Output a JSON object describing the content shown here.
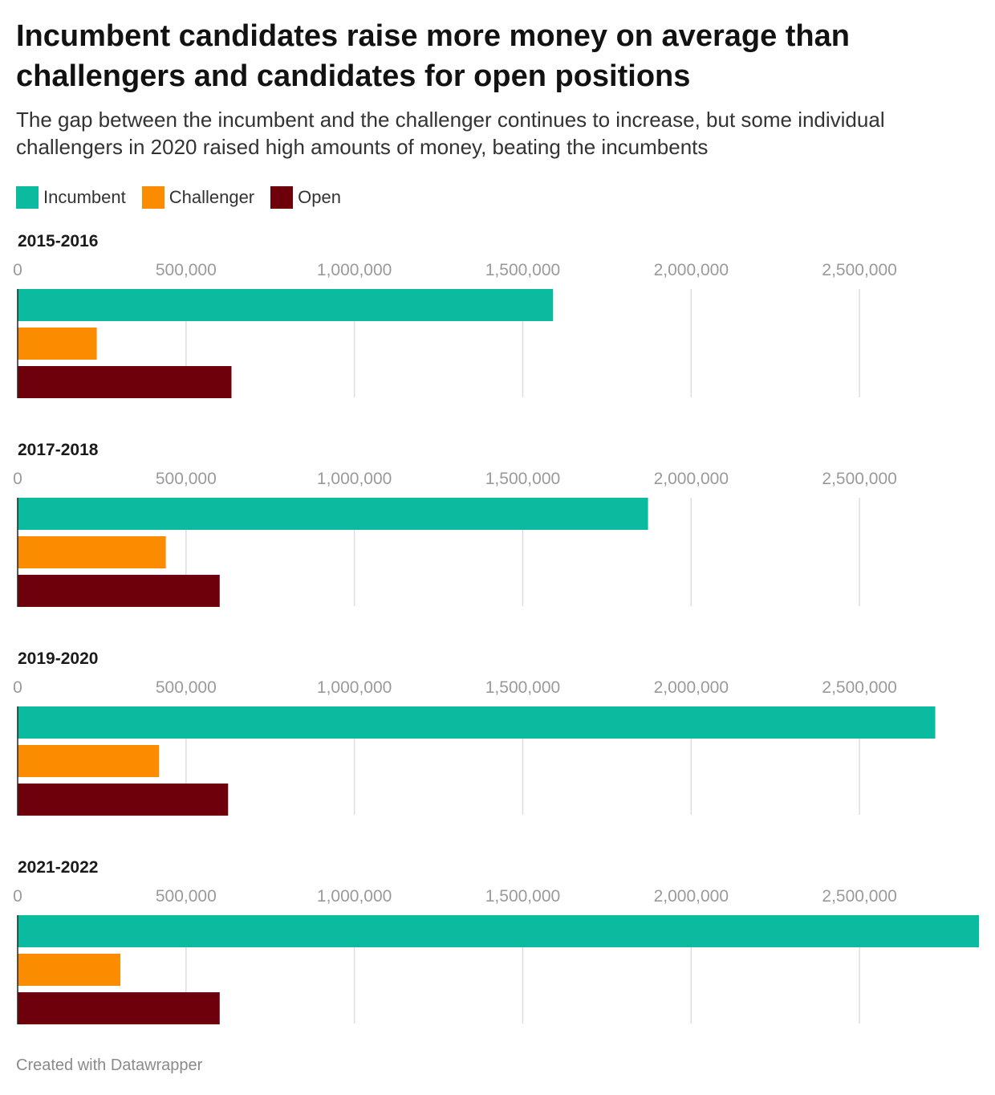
{
  "header": {
    "title": "Incumbent candidates raise more money on average than challengers and candidates for open positions",
    "subtitle": "The gap between the incumbent and the challenger continues to increase, but some individual challengers in 2020 raised high amounts of money, beating the incumbents"
  },
  "footer": {
    "credit": "Created with Datawrapper"
  },
  "colors": {
    "Incumbent": "#0bbba0",
    "Challenger": "#fb8c00",
    "Open": "#6d000b"
  },
  "chart_data": {
    "type": "bar",
    "orientation": "horizontal",
    "layout": "small-multiples",
    "xlim": [
      0,
      2850000
    ],
    "xticks": [
      0,
      500000,
      1000000,
      1500000,
      2000000,
      2500000
    ],
    "xtick_labels": [
      "0",
      "500,000",
      "1,000,000",
      "1,500,000",
      "2,000,000",
      "2,500,000"
    ],
    "grid": true,
    "legend": "top-left",
    "series_names": [
      "Incumbent",
      "Challenger",
      "Open"
    ],
    "panels": [
      {
        "title": "2015-2016",
        "values": [
          1590000,
          235000,
          635000
        ]
      },
      {
        "title": "2017-2018",
        "values": [
          1872000,
          440000,
          600000
        ]
      },
      {
        "title": "2019-2020",
        "values": [
          2725000,
          420000,
          625000
        ]
      },
      {
        "title": "2021-2022",
        "values": [
          2855000,
          305000,
          600000
        ]
      }
    ]
  }
}
